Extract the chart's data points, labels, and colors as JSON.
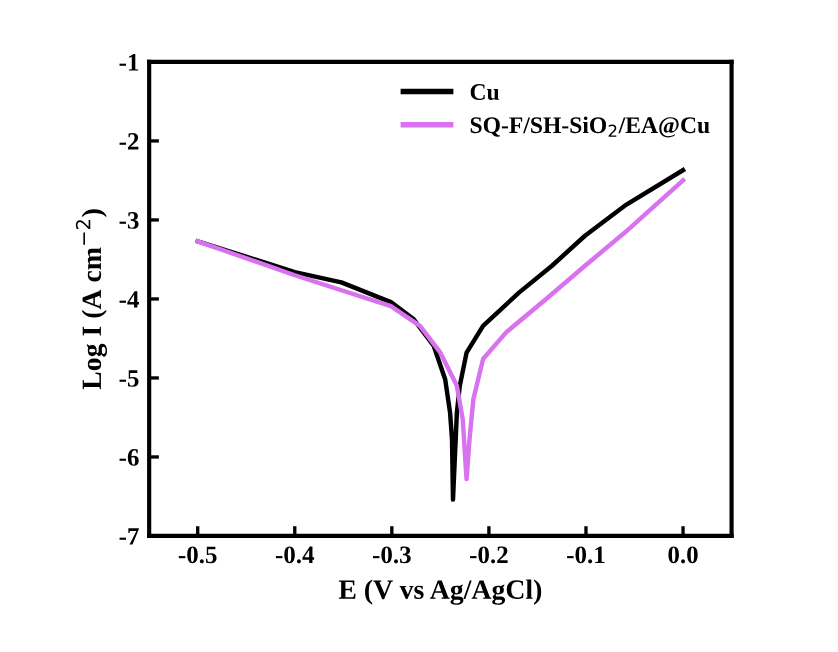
{
  "chart_data": {
    "type": "line",
    "xlabel": "E (V vs Ag/AgCl)",
    "ylabel": "Log I (A cm$^{−2}$)",
    "xlim": [
      -0.55,
      0.05
    ],
    "ylim": [
      -7,
      -1
    ],
    "xticks": [
      -0.5,
      -0.4,
      -0.3,
      -0.2,
      -0.1,
      {
        "value": 0,
        "label": "0.0"
      }
    ],
    "yticks": [
      -7,
      -6,
      -5,
      -4,
      -3,
      -2,
      -1
    ],
    "legend": "top right",
    "grid": false,
    "line_style": "solid",
    "marker": "none",
    "series": [
      {
        "name": "Cu",
        "color": "#000000",
        "x": [
          -0.5,
          -0.4,
          -0.352,
          -0.301,
          -0.278,
          -0.257,
          -0.245,
          -0.24,
          -0.238,
          -0.237,
          -0.233,
          -0.23,
          -0.223,
          -0.206,
          -0.169,
          -0.135,
          -0.101,
          -0.06,
          0
        ],
        "values": [
          -3.27,
          -3.66,
          -3.79,
          -4.04,
          -4.25,
          -4.59,
          -5.02,
          -5.44,
          -5.78,
          -6.54,
          -5.44,
          -5.1,
          -4.68,
          -4.34,
          -3.92,
          -3.58,
          -3.2,
          -2.82,
          -2.37
        ]
      },
      {
        "name": "SQ-F/SH-SiO$_{2}$/EA@Cu",
        "color": "#d872ee",
        "x": [
          -0.5,
          -0.4,
          -0.301,
          -0.271,
          -0.25,
          -0.233,
          -0.227,
          -0.223,
          -0.22,
          -0.216,
          -0.206,
          -0.182,
          -0.141,
          -0.101,
          -0.06,
          0
        ],
        "values": [
          -3.27,
          -3.7,
          -4.09,
          -4.34,
          -4.68,
          -5.1,
          -5.52,
          -6.28,
          -5.78,
          -5.27,
          -4.76,
          -4.42,
          -4.0,
          -3.58,
          -3.16,
          -2.5
        ]
      }
    ]
  }
}
